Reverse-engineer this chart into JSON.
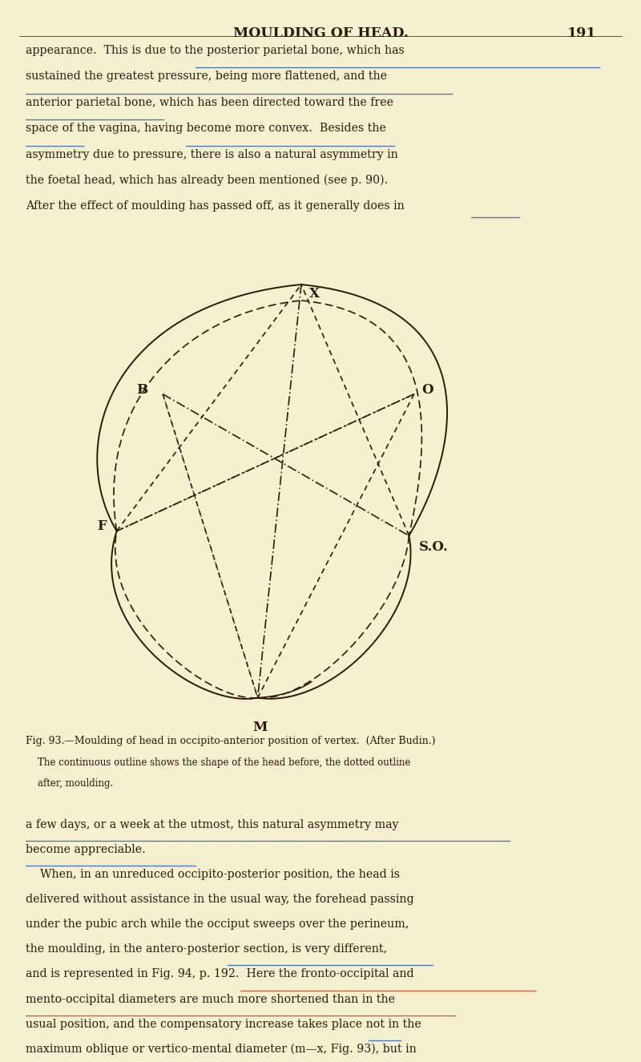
{
  "bg_color": "#f5f0d0",
  "text_color": "#2a1a0a",
  "page_title": "MOULDING OF HEAD.",
  "page_number": "191",
  "paragraph1_lines": [
    "appearance.  This is due to the posterior parietal bone, which has",
    "sustained the greatest pressure, being more flattened, and the",
    "anterior parietal bone, which has been directed toward the free",
    "space of the vagina, having become more convex.  Besides the",
    "asymmetry due to pressure, there is also a natural asymmetry in",
    "the foetal head, which has already been mentioned (see p. 90).",
    "After the effect of moulding has passed off, as it generally does in"
  ],
  "fig_caption_lines": [
    "Fig. 93.—Moulding of head in occipito-anterior position of vertex.  (After Budin.)",
    "    The continuous outline shows the shape of the head before, the dotted outline",
    "    after, moulding."
  ],
  "paragraph2_lines": [
    "a few days, or a week at the utmost, this natural asymmetry may",
    "become appreciable.",
    "    When, in an unreduced occipito-posterior position, the head is",
    "delivered without assistance in the usual way, the forehead passing",
    "under the pubic arch while the occiput sweeps over the perineum,",
    "the moulding, in the antero-posterior section, is very different,",
    "and is represented in Fig. 94, p. 192.  Here the fronto-occipital and",
    "mento-occipital diameters are much more shortened than in the",
    "usual position, and the compensatory increase takes place not in the",
    "maximum oblique or vertico-mental diameter (m—x, Fig. 93), but in"
  ],
  "underline_color": "#5577bb",
  "underline_color2": "#cc6644",
  "line_color": "#2a1a0a"
}
